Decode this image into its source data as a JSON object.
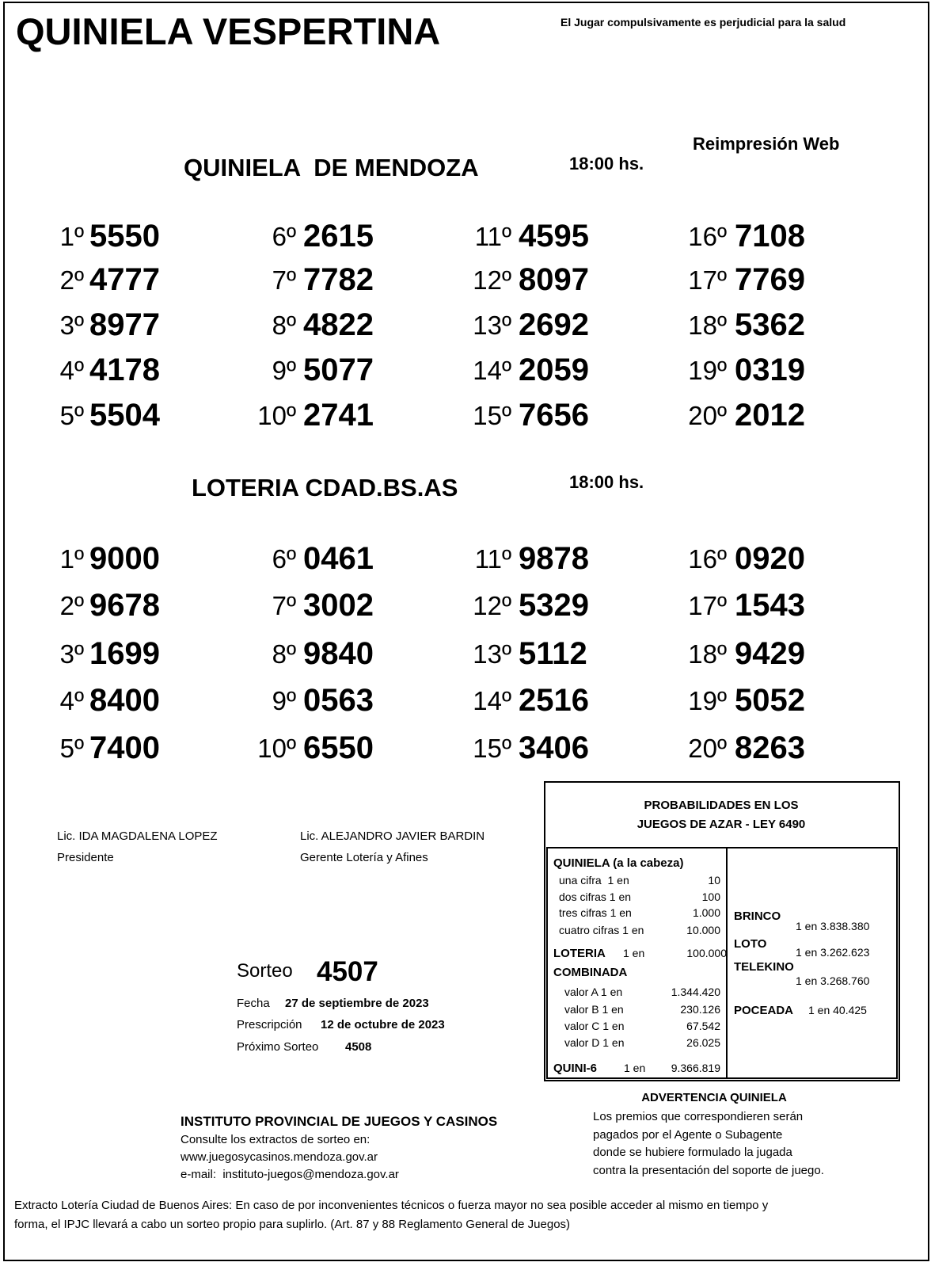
{
  "header": {
    "title": "QUINIELA VESPERTINA",
    "warning": "El Jugar compulsivamente es perjudicial para la salud",
    "reprint": "Reimpresión Web"
  },
  "draws": [
    {
      "name": "QUINIELA  DE MENDOZA",
      "time": "18:00 hs.",
      "results": [
        {
          "pos": "1º",
          "num": "5550"
        },
        {
          "pos": "2º",
          "num": "4777"
        },
        {
          "pos": "3º",
          "num": "8977"
        },
        {
          "pos": "4º",
          "num": "4178"
        },
        {
          "pos": "5º",
          "num": "5504"
        },
        {
          "pos": "6º",
          "num": "2615"
        },
        {
          "pos": "7º",
          "num": "7782"
        },
        {
          "pos": "8º",
          "num": "4822"
        },
        {
          "pos": "9º",
          "num": "5077"
        },
        {
          "pos": "10º",
          "num": "2741"
        },
        {
          "pos": "11º",
          "num": "4595"
        },
        {
          "pos": "12º",
          "num": "8097"
        },
        {
          "pos": "13º",
          "num": "2692"
        },
        {
          "pos": "14º",
          "num": "2059"
        },
        {
          "pos": "15º",
          "num": "7656"
        },
        {
          "pos": "16º",
          "num": "7108"
        },
        {
          "pos": "17º",
          "num": "7769"
        },
        {
          "pos": "18º",
          "num": "5362"
        },
        {
          "pos": "19º",
          "num": "0319"
        },
        {
          "pos": "20º",
          "num": "2012"
        }
      ]
    },
    {
      "name": "LOTERIA CDAD.BS.AS",
      "time": "18:00 hs.",
      "results": [
        {
          "pos": "1º",
          "num": "9000"
        },
        {
          "pos": "2º",
          "num": "9678"
        },
        {
          "pos": "3º",
          "num": "1699"
        },
        {
          "pos": "4º",
          "num": "8400"
        },
        {
          "pos": "5º",
          "num": "7400"
        },
        {
          "pos": "6º",
          "num": "0461"
        },
        {
          "pos": "7º",
          "num": "3002"
        },
        {
          "pos": "8º",
          "num": "9840"
        },
        {
          "pos": "9º",
          "num": "0563"
        },
        {
          "pos": "10º",
          "num": "6550"
        },
        {
          "pos": "11º",
          "num": "9878"
        },
        {
          "pos": "12º",
          "num": "5329"
        },
        {
          "pos": "13º",
          "num": "5112"
        },
        {
          "pos": "14º",
          "num": "2516"
        },
        {
          "pos": "15º",
          "num": "3406"
        },
        {
          "pos": "16º",
          "num": "0920"
        },
        {
          "pos": "17º",
          "num": "1543"
        },
        {
          "pos": "18º",
          "num": "9429"
        },
        {
          "pos": "19º",
          "num": "5052"
        },
        {
          "pos": "20º",
          "num": "8263"
        }
      ]
    }
  ],
  "signatures": [
    {
      "name": "Lic. IDA MAGDALENA LOPEZ",
      "role": "Presidente"
    },
    {
      "name": "Lic. ALEJANDRO JAVIER BARDIN",
      "role": "Gerente Lotería y Afines"
    }
  ],
  "sorteo": {
    "label": "Sorteo",
    "number": "4507",
    "fecha_label": "Fecha",
    "fecha": "27 de septiembre de 2023",
    "prescripcion_label": "Prescripción",
    "prescripcion": "12 de octubre de 2023",
    "proximo_label": "Próximo Sorteo",
    "proximo": "4508"
  },
  "probabilities": {
    "title": [
      "PROBABILIDADES EN LOS",
      "JUEGOS DE AZAR - LEY 6490"
    ],
    "quiniela": {
      "heading": "QUINIELA (a la cabeza)",
      "rows": [
        [
          "una cifra  1 en",
          "10"
        ],
        [
          "dos cifras 1 en",
          "100"
        ],
        [
          "tres cifras 1 en",
          "1.000"
        ],
        [
          "cuatro cifras 1 en",
          "10.000"
        ]
      ]
    },
    "loteria": [
      "LOTERIA",
      "1 en",
      "100.000"
    ],
    "combinada": {
      "heading": "COMBINADA",
      "rows": [
        [
          "valor A 1 en",
          "1.344.420"
        ],
        [
          "valor B 1 en",
          "230.126"
        ],
        [
          "valor C 1 en",
          "67.542"
        ],
        [
          "valor D 1 en",
          "26.025"
        ]
      ]
    },
    "quini6": [
      "QUINI-6",
      "1 en",
      "9.366.819"
    ],
    "brinco": [
      "BRINCO",
      "1 en 3.838.380"
    ],
    "loto": [
      "LOTO",
      "1 en 3.262.623"
    ],
    "telekino": [
      "TELEKINO",
      "1 en 3.268.760"
    ],
    "poceada": [
      "POCEADA",
      "1 en 40.425"
    ]
  },
  "institute": {
    "title": "INSTITUTO PROVINCIAL DE JUEGOS Y CASINOS",
    "lines": [
      "Consulte los extractos de sorteo en:",
      "www.juegosycasinos.mendoza.gov.ar",
      "e-mail:  instituto-juegos@mendoza.gov.ar"
    ]
  },
  "advertencia": {
    "title": "ADVERTENCIA QUINIELA",
    "lines": [
      "Los premios que correspondieren serán",
      "pagados por el Agente o Subagente",
      "donde se hubiere formulado la jugada",
      "contra la presentación del soporte de juego."
    ]
  },
  "footer": [
    "Extracto Lotería Ciudad de Buenos Aires: En caso de por inconvenientes técnicos o fuerza mayor no sea posible acceder al mismo en tiempo y",
    "forma, el IPJC llevará a cabo un sorteo propio para suplirlo. (Art. 87 y 88 Reglamento General de Juegos)"
  ]
}
